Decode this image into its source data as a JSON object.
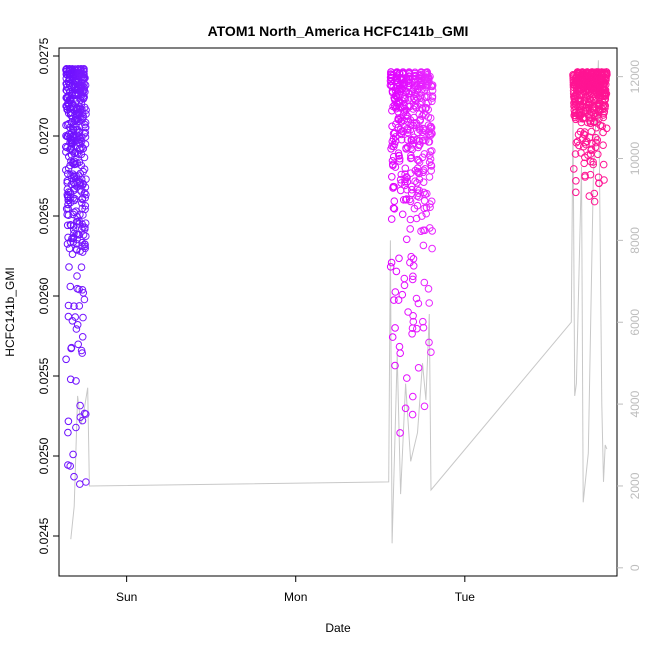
{
  "chart_data": {
    "type": "scatter",
    "title": "ATOM1 North_America HCFC141b_GMI",
    "xlabel": "Date",
    "ylabel": "HCFC141b_GMI",
    "x_ticks": [
      {
        "label": "Sun",
        "value": 0.0
      },
      {
        "label": "Mon",
        "value": 1.0
      },
      {
        "label": "Tue",
        "value": 2.0
      }
    ],
    "xlim": [
      -0.4,
      2.9
    ],
    "ylim": [
      0.02425,
      0.02755
    ],
    "y_ticks": [
      "0.0245",
      "0.0250",
      "0.0255",
      "0.0260",
      "0.0265",
      "0.0270",
      "0.0275"
    ],
    "y2lim": [
      -200,
      12700
    ],
    "y2_ticks": [
      "0",
      "2000",
      "4000",
      "6000",
      "8000",
      "10000",
      "12000"
    ],
    "colors": {
      "series_start": "#6a0dff",
      "series_mid": "#e600ff",
      "series_end": "#ff1493",
      "altitude_line": "#c8c8c8",
      "axis": "#000000",
      "axis_right": "#bdbdbd"
    },
    "series": [
      {
        "segments": [
          {
            "x_start": -0.36,
            "x_end": -0.24,
            "y_low": 0.02428,
            "y_high": 0.02742,
            "color_start": "#6a0dff",
            "color_end": "#7a1aff"
          },
          {
            "x_start": 1.56,
            "x_end": 1.81,
            "y_low": 0.02508,
            "y_high": 0.0274,
            "color_start": "#e000ff",
            "color_end": "#e828ff"
          },
          {
            "x_start": 2.64,
            "x_end": 2.84,
            "y_low": 0.02655,
            "y_high": 0.0274,
            "color_start": "#ff1493",
            "color_end": "#ff1493"
          }
        ]
      }
    ],
    "altitude": [
      [
        -0.33,
        700
      ],
      [
        -0.31,
        1500
      ],
      [
        -0.29,
        4200
      ],
      [
        -0.27,
        3500
      ],
      [
        -0.25,
        3900
      ],
      [
        -0.23,
        4400
      ],
      [
        -0.22,
        2000
      ],
      [
        1.55,
        2100
      ],
      [
        1.56,
        8000
      ],
      [
        1.57,
        600
      ],
      [
        1.6,
        5200
      ],
      [
        1.62,
        1800
      ],
      [
        1.65,
        4500
      ],
      [
        1.68,
        2600
      ],
      [
        1.72,
        3300
      ],
      [
        1.75,
        5000
      ],
      [
        1.77,
        4100
      ],
      [
        1.79,
        6200
      ],
      [
        1.8,
        1900
      ],
      [
        2.63,
        6000
      ],
      [
        2.64,
        11000
      ],
      [
        2.65,
        4200
      ],
      [
        2.66,
        4500
      ],
      [
        2.69,
        9800
      ],
      [
        2.7,
        1600
      ],
      [
        2.73,
        2800
      ],
      [
        2.76,
        9500
      ],
      [
        2.79,
        12400
      ],
      [
        2.81,
        4000
      ],
      [
        2.82,
        2100
      ],
      [
        2.83,
        3000
      ],
      [
        2.84,
        2900
      ]
    ]
  }
}
